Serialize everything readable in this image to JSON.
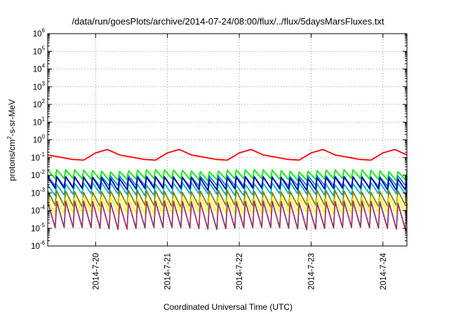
{
  "chart_data": {
    "type": "line",
    "title": "/data/run/goesPlots/archive/2014-07-24/08:00/flux/../flux/5daysMarsFluxes.txt",
    "xlabel": "Coordinated Universal Time (UTC)",
    "ylabel_prefix": "protons/cm",
    "ylabel_sup": "2",
    "ylabel_suffix": "-s-sr-MeV",
    "y_scale": "log",
    "ylim": [
      1e-06,
      1000000.0
    ],
    "y_ticks": [
      {
        "exp": "-6",
        "value": 1e-06
      },
      {
        "exp": "-5",
        "value": 1e-05
      },
      {
        "exp": "-4",
        "value": 0.0001
      },
      {
        "exp": "-3",
        "value": 0.001
      },
      {
        "exp": "-2",
        "value": 0.01
      },
      {
        "exp": "-1",
        "value": 0.1
      },
      {
        "exp": "0",
        "value": 1
      },
      {
        "exp": "1",
        "value": 10
      },
      {
        "exp": "2",
        "value": 100
      },
      {
        "exp": "3",
        "value": 1000
      },
      {
        "exp": "4",
        "value": 10000
      },
      {
        "exp": "5",
        "value": 100000
      },
      {
        "exp": "6",
        "value": 1000000
      }
    ],
    "y_tick_base": "10",
    "xlim": [
      "2014-07-19T08:00",
      "2014-07-24T08:00"
    ],
    "x_ticks": [
      {
        "label": "2014-7-20",
        "value": "2014-07-20"
      },
      {
        "label": "2014-7-21",
        "value": "2014-07-21"
      },
      {
        "label": "2014-7-22",
        "value": "2014-07-22"
      },
      {
        "label": "2014-7-23",
        "value": "2014-07-23"
      },
      {
        "label": "2014-7-24",
        "value": "2014-07-24"
      }
    ],
    "grid": true,
    "legend": "none",
    "series": [
      {
        "color": "#ff0000",
        "base": 0.06,
        "amp": 2.4,
        "cycle_hours": 24,
        "phase_hours": 14
      },
      {
        "color": "#00ee00",
        "base": 0.0045,
        "amp": 4.0,
        "cycle_hours": 3,
        "phase_hours": 0
      },
      {
        "color": "#1f75fe",
        "base": 0.0018,
        "amp": 4.5,
        "cycle_hours": 3,
        "phase_hours": 0
      },
      {
        "color": "#00b3b3",
        "base": 0.0006,
        "amp": 5.5,
        "cycle_hours": 3,
        "phase_hours": 0
      },
      {
        "color": "#0000b0",
        "base": 0.0012,
        "amp": 6.0,
        "cycle_hours": 3,
        "phase_hours": 0
      },
      {
        "color": "#808000",
        "base": 0.00012,
        "amp": 10.0,
        "cycle_hours": 3,
        "phase_hours": 0
      },
      {
        "color": "#ffff00",
        "base": 5e-05,
        "amp": 10.0,
        "cycle_hours": 3,
        "phase_hours": 0
      },
      {
        "color": "#993366",
        "base": 5e-06,
        "amp": 60.0,
        "cycle_hours": 3,
        "phase_hours": 0
      }
    ]
  }
}
